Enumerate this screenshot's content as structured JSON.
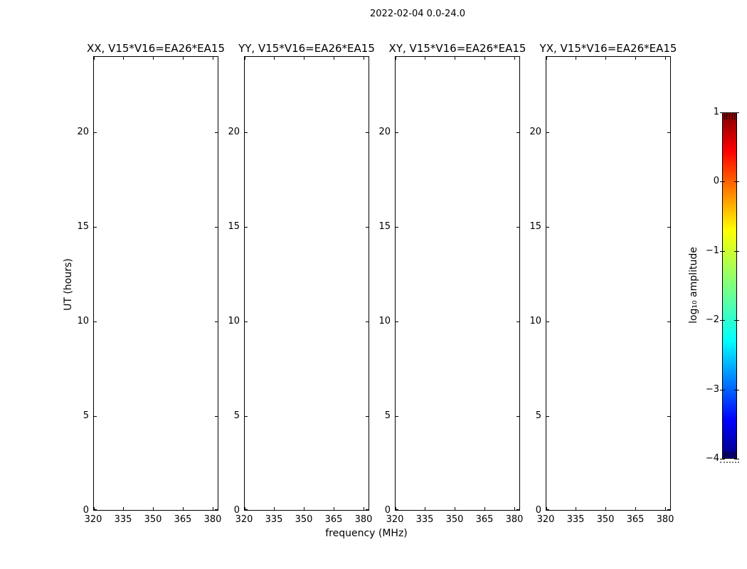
{
  "chart_data": {
    "type": "heatmap",
    "suptitle": "2022-02-04 0.0-24.0",
    "xlabel": "frequency (MHz)",
    "ylabel": "UT (hours)",
    "panels": [
      {
        "id": "XX",
        "title": "XX, V15*V16=EA26*EA15",
        "values": []
      },
      {
        "id": "YY",
        "title": "YY, V15*V16=EA26*EA15",
        "values": []
      },
      {
        "id": "XY",
        "title": "XY, V15*V16=EA26*EA15",
        "values": []
      },
      {
        "id": "YX",
        "title": "YX, V15*V16=EA26*EA15",
        "values": []
      }
    ],
    "x_ticks": [
      320,
      335,
      350,
      365,
      380
    ],
    "xlim": [
      320,
      383
    ],
    "y_ticks": [
      0,
      5,
      10,
      15,
      20
    ],
    "ylim": [
      0,
      24
    ],
    "grid": false,
    "legend": "none",
    "colorbar": {
      "label": "log₁₀ amplitude",
      "tick_labels": [
        "1",
        "0",
        "−1",
        "−2",
        "−3",
        "−4"
      ],
      "tick_values": [
        1,
        0,
        -1,
        -2,
        -3,
        -4
      ],
      "range": [
        -4,
        1
      ],
      "colormap": "jet",
      "gradient_top_to_bottom": [
        {
          "pos": 0,
          "color": "#7f0000"
        },
        {
          "pos": 11,
          "color": "#ff0000"
        },
        {
          "pos": 34,
          "color": "#ffff00"
        },
        {
          "pos": 50,
          "color": "#7fff7f"
        },
        {
          "pos": 66,
          "color": "#00ffff"
        },
        {
          "pos": 89,
          "color": "#0000ff"
        },
        {
          "pos": 100,
          "color": "#00007f"
        }
      ]
    }
  },
  "colors": {
    "background": "#ffffff",
    "frame": "#000000",
    "text": "#000000"
  }
}
